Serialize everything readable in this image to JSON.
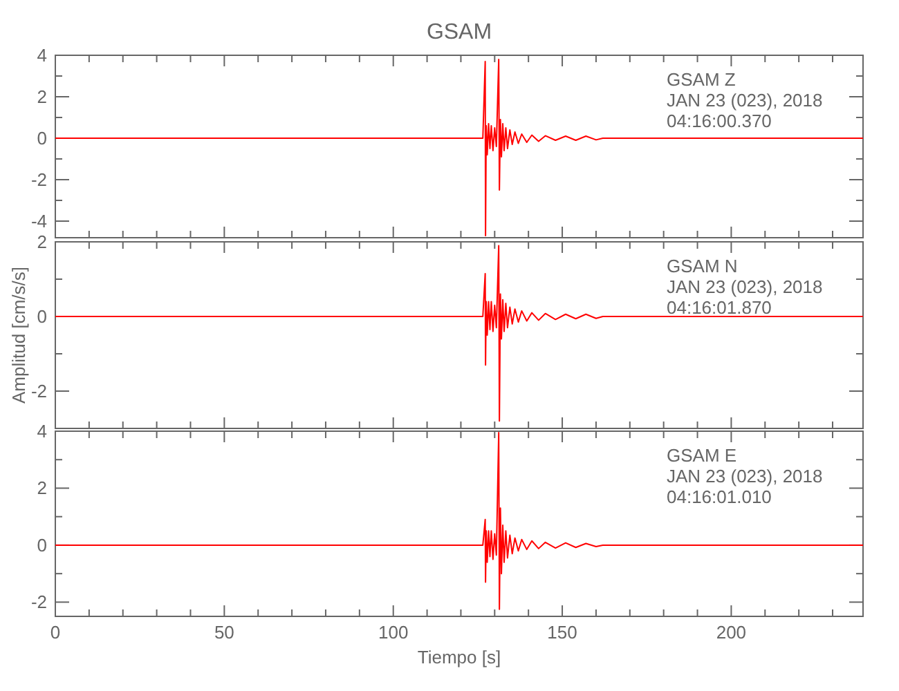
{
  "chart_data": [
    {
      "type": "line",
      "title": "GSAM",
      "annotations": [
        "GSAM   Z",
        "JAN 23 (023), 2018",
        "04:16:00.370"
      ],
      "color": "#ff0000",
      "tick_labels": "y",
      "xlim": [
        0,
        239
      ],
      "ylim": [
        -4.8,
        4
      ],
      "xticks": [
        0,
        {
          "value": 10,
          "label": null
        },
        {
          "value": 20,
          "label": null
        },
        {
          "value": 30,
          "label": null
        },
        {
          "value": 40,
          "label": null
        },
        50,
        {
          "value": 60,
          "label": null
        },
        {
          "value": 70,
          "label": null
        },
        {
          "value": 80,
          "label": null
        },
        {
          "value": 90,
          "label": null
        },
        100,
        {
          "value": 110,
          "label": null
        },
        {
          "value": 120,
          "label": null
        },
        {
          "value": 130,
          "label": null
        },
        {
          "value": 140,
          "label": null
        },
        150,
        {
          "value": 160,
          "label": null
        },
        {
          "value": 170,
          "label": null
        },
        {
          "value": 180,
          "label": null
        },
        {
          "value": 190,
          "label": null
        },
        200,
        {
          "value": 210,
          "label": null
        },
        {
          "value": 220,
          "label": null
        },
        {
          "value": 230,
          "label": null
        }
      ],
      "yticks": [
        -4,
        {
          "value": -3,
          "label": null
        },
        -2,
        {
          "value": -1,
          "label": null
        },
        0,
        {
          "value": 1,
          "label": null
        },
        2,
        {
          "value": 3,
          "label": null
        },
        4
      ],
      "x": [
        0,
        40,
        80,
        120,
        126.5,
        127.2,
        127.3,
        127.5,
        127.8,
        128.2,
        128.6,
        129,
        129.5,
        130,
        130.5,
        131.2,
        131.4,
        131.7,
        132,
        132.4,
        132.8,
        133.3,
        133.8,
        134.5,
        135.2,
        136,
        137,
        138,
        139.5,
        141,
        143,
        145,
        148,
        151,
        154,
        157,
        160,
        162,
        180,
        200,
        239
      ],
      "values": [
        0,
        0,
        0,
        0,
        0,
        3.7,
        -4.7,
        0.6,
        -0.8,
        0.7,
        -0.5,
        0.6,
        -0.6,
        0.5,
        -0.4,
        3.8,
        -2.5,
        0.9,
        -0.9,
        0.7,
        -0.6,
        0.5,
        -0.5,
        0.4,
        -0.3,
        0.3,
        -0.25,
        0.2,
        -0.2,
        0.15,
        -0.15,
        0.12,
        -0.1,
        0.1,
        -0.1,
        0.1,
        -0.08,
        0,
        0,
        0,
        0
      ]
    },
    {
      "type": "line",
      "ylabel": "Amplitud [cm/s/s]",
      "annotations": [
        "GSAM   N",
        "JAN 23 (023), 2018",
        "04:16:01.870"
      ],
      "color": "#ff0000",
      "tick_labels": "y",
      "xlim": [
        0,
        239
      ],
      "ylim": [
        -3,
        2
      ],
      "xticks": [
        0,
        {
          "value": 10,
          "label": null
        },
        {
          "value": 20,
          "label": null
        },
        {
          "value": 30,
          "label": null
        },
        {
          "value": 40,
          "label": null
        },
        50,
        {
          "value": 60,
          "label": null
        },
        {
          "value": 70,
          "label": null
        },
        {
          "value": 80,
          "label": null
        },
        {
          "value": 90,
          "label": null
        },
        100,
        {
          "value": 110,
          "label": null
        },
        {
          "value": 120,
          "label": null
        },
        {
          "value": 130,
          "label": null
        },
        {
          "value": 140,
          "label": null
        },
        150,
        {
          "value": 160,
          "label": null
        },
        {
          "value": 170,
          "label": null
        },
        {
          "value": 180,
          "label": null
        },
        {
          "value": 190,
          "label": null
        },
        200,
        {
          "value": 210,
          "label": null
        },
        {
          "value": 220,
          "label": null
        },
        {
          "value": 230,
          "label": null
        }
      ],
      "yticks": [
        {
          "value": -3,
          "label": null
        },
        -2,
        {
          "value": -1,
          "label": null
        },
        0,
        {
          "value": 1,
          "label": null
        },
        2
      ],
      "x": [
        0,
        40,
        80,
        120,
        126.5,
        127.2,
        127.3,
        127.5,
        127.8,
        128.2,
        128.6,
        129,
        129.5,
        130,
        130.5,
        131.2,
        131.4,
        131.7,
        132,
        132.4,
        132.8,
        133.3,
        133.8,
        134.5,
        135.2,
        136,
        137,
        138,
        139.5,
        141,
        143,
        145,
        148,
        151,
        154,
        157,
        160,
        162,
        180,
        200,
        239
      ],
      "values": [
        0,
        0,
        0,
        0,
        0,
        1.15,
        -1.3,
        0.4,
        -0.5,
        0.4,
        -0.35,
        0.4,
        -0.4,
        0.3,
        -0.3,
        1.9,
        -2.8,
        0.6,
        -0.6,
        0.45,
        -0.4,
        0.35,
        -0.3,
        0.25,
        -0.2,
        0.2,
        -0.15,
        0.15,
        -0.12,
        0.1,
        -0.1,
        0.08,
        -0.08,
        0.06,
        -0.06,
        0.06,
        -0.05,
        0,
        0,
        0,
        0
      ]
    },
    {
      "type": "line",
      "xlabel": "Tiempo [s]",
      "annotations": [
        "GSAM   E",
        "JAN 23 (023), 2018",
        "04:16:01.010"
      ],
      "color": "#ff0000",
      "xlim": [
        0,
        239
      ],
      "ylim": [
        -2.5,
        4
      ],
      "xticks": [
        0,
        {
          "value": 10,
          "label": null
        },
        {
          "value": 20,
          "label": null
        },
        {
          "value": 30,
          "label": null
        },
        {
          "value": 40,
          "label": null
        },
        50,
        {
          "value": 60,
          "label": null
        },
        {
          "value": 70,
          "label": null
        },
        {
          "value": 80,
          "label": null
        },
        {
          "value": 90,
          "label": null
        },
        100,
        {
          "value": 110,
          "label": null
        },
        {
          "value": 120,
          "label": null
        },
        {
          "value": 130,
          "label": null
        },
        {
          "value": 140,
          "label": null
        },
        150,
        {
          "value": 160,
          "label": null
        },
        {
          "value": 170,
          "label": null
        },
        {
          "value": 180,
          "label": null
        },
        {
          "value": 190,
          "label": null
        },
        200,
        {
          "value": 210,
          "label": null
        },
        {
          "value": 220,
          "label": null
        },
        {
          "value": 230,
          "label": null
        }
      ],
      "yticks": [
        -2,
        {
          "value": -1,
          "label": null
        },
        0,
        {
          "value": 1,
          "label": null
        },
        2,
        {
          "value": 3,
          "label": null
        },
        4
      ],
      "x": [
        0,
        40,
        80,
        120,
        126.5,
        127.2,
        127.3,
        127.5,
        127.8,
        128.2,
        128.6,
        129,
        129.5,
        130,
        130.5,
        131.2,
        131.4,
        131.7,
        132,
        132.4,
        132.8,
        133.3,
        133.8,
        134.5,
        135.2,
        136,
        137,
        138,
        139.5,
        141,
        143,
        145,
        148,
        151,
        154,
        157,
        160,
        162,
        180,
        200,
        239
      ],
      "values": [
        0,
        0,
        0,
        0,
        0,
        0.9,
        -1.3,
        0.5,
        -0.6,
        0.5,
        -0.4,
        0.5,
        -0.5,
        0.4,
        -0.35,
        3.95,
        -2.25,
        1.3,
        -1.0,
        0.7,
        -0.6,
        0.5,
        -0.45,
        0.35,
        -0.3,
        0.25,
        -0.2,
        0.2,
        -0.15,
        0.15,
        -0.12,
        0.1,
        -0.1,
        0.08,
        -0.08,
        0.06,
        -0.05,
        0,
        0,
        0,
        0
      ]
    }
  ]
}
